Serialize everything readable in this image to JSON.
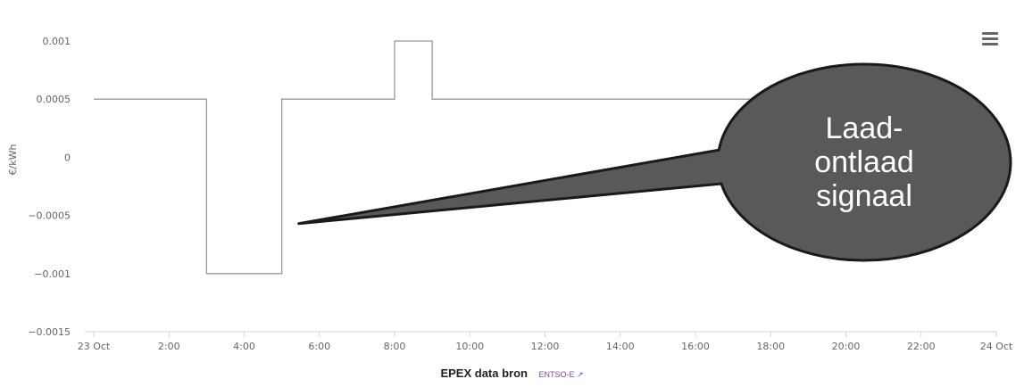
{
  "chart_data": {
    "type": "line",
    "step": true,
    "ylabel": "€/kWh",
    "ylim": [
      -0.0015,
      0.0012
    ],
    "yticks": [
      {
        "value": 0.001,
        "label": "0.001"
      },
      {
        "value": 0.0005,
        "label": "0.0005"
      },
      {
        "value": 0,
        "label": "0"
      },
      {
        "value": -0.0005,
        "label": "-0.0005"
      },
      {
        "value": -0.001,
        "label": "-0.001"
      },
      {
        "value": -0.0015,
        "label": "-0.0015"
      }
    ],
    "xlim": [
      0,
      24
    ],
    "xticks": [
      {
        "value": 0,
        "label": "23 Oct"
      },
      {
        "value": 2,
        "label": "2:00"
      },
      {
        "value": 4,
        "label": "4:00"
      },
      {
        "value": 6,
        "label": "6:00"
      },
      {
        "value": 8,
        "label": "8:00"
      },
      {
        "value": 10,
        "label": "10:00"
      },
      {
        "value": 12,
        "label": "12:00"
      },
      {
        "value": 14,
        "label": "14:00"
      },
      {
        "value": 16,
        "label": "16:00"
      },
      {
        "value": 18,
        "label": "18:00"
      },
      {
        "value": 20,
        "label": "20:00"
      },
      {
        "value": 22,
        "label": "22:00"
      },
      {
        "value": 24,
        "label": "24 Oct"
      }
    ],
    "series": [
      {
        "color": "#999999",
        "points": [
          {
            "x": 0,
            "y": 0.0005
          },
          {
            "x": 3,
            "y": -0.001
          },
          {
            "x": 5,
            "y": 0.0005
          },
          {
            "x": 8,
            "y": 0.001
          },
          {
            "x": 9,
            "y": 0.0005
          },
          {
            "x": 19,
            "y": 0.0005
          }
        ]
      }
    ],
    "grid": false
  },
  "callout": {
    "lines": [
      "Laad-",
      "ontlaad",
      "signaal"
    ],
    "pointer_x": 5.5,
    "pointer_y": -0.00057,
    "fill": "#595959",
    "stroke": "#1a1a1a"
  },
  "source": {
    "label": "EPEX data bron",
    "link_text": "ENTSO-E",
    "link_icon": "external-link-icon"
  },
  "menu": {
    "icon": "hamburger-menu-icon"
  }
}
